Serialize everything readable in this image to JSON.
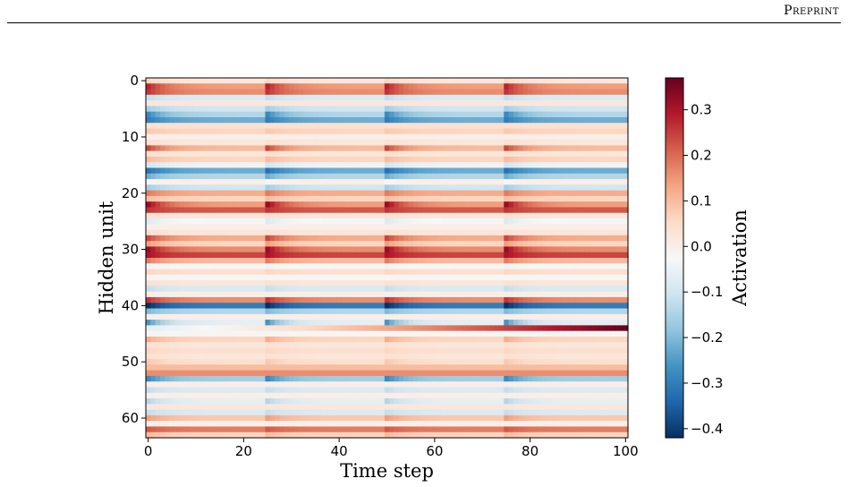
{
  "header": {
    "running_head": "Preprint"
  },
  "chart_data": {
    "type": "heatmap",
    "xlabel": "Time step",
    "ylabel": "Hidden unit",
    "colorbar_label": "Activation",
    "colormap": "RdBu_r",
    "x_range": [
      0,
      100
    ],
    "y_range": [
      0,
      63
    ],
    "y_inverted": true,
    "x_ticks": [
      0,
      20,
      40,
      60,
      80,
      100
    ],
    "y_ticks": [
      0,
      10,
      20,
      30,
      40,
      50,
      60
    ],
    "x_tick_labels": [
      "0",
      "20",
      "40",
      "60",
      "80",
      "100"
    ],
    "y_tick_labels": [
      "0",
      "10",
      "20",
      "30",
      "40",
      "50",
      "60"
    ],
    "colorbar_range": [
      -0.42,
      0.37
    ],
    "colorbar_ticks": [
      0.3,
      0.2,
      0.1,
      0.0,
      -0.1,
      -0.2,
      -0.3,
      -0.4
    ],
    "colorbar_tick_labels": [
      "0.3",
      "0.2",
      "0.1",
      "0.0",
      "−0.1",
      "−0.2",
      "−0.3",
      "−0.4"
    ],
    "input_onsets": [
      0,
      25,
      50,
      75
    ],
    "unit_steady_activation": [
      0.02,
      0.14,
      0.16,
      -0.08,
      0.02,
      -0.1,
      -0.14,
      -0.22,
      0.04,
      0.06,
      0.0,
      0.02,
      0.1,
      0.02,
      0.06,
      -0.04,
      -0.22,
      -0.14,
      0.0,
      -0.1,
      0.12,
      0.06,
      0.14,
      0.22,
      0.02,
      -0.02,
      0.0,
      0.02,
      0.12,
      0.06,
      0.16,
      0.24,
      0.1,
      -0.02,
      0.04,
      -0.02,
      0.02,
      -0.08,
      0.0,
      0.16,
      -0.3,
      -0.14,
      0.0,
      -0.06,
      0.1,
      -0.02,
      0.06,
      0.02,
      0.04,
      0.02,
      0.04,
      0.1,
      0.16,
      -0.16,
      0.0,
      -0.08,
      0.0,
      -0.06,
      0.02,
      -0.08,
      0.08,
      0.0,
      0.18,
      0.06
    ],
    "unit_transient_activation": [
      0.04,
      0.14,
      0.1,
      -0.04,
      0.0,
      -0.06,
      -0.14,
      -0.08,
      0.0,
      0.02,
      0.0,
      0.02,
      0.14,
      0.02,
      0.04,
      -0.06,
      -0.1,
      -0.08,
      -0.02,
      -0.06,
      0.06,
      0.04,
      0.18,
      0.04,
      0.02,
      -0.06,
      0.0,
      0.02,
      0.12,
      0.08,
      0.16,
      0.06,
      0.08,
      -0.02,
      0.02,
      0.0,
      0.02,
      -0.04,
      0.0,
      0.1,
      -0.12,
      -0.06,
      0.0,
      -0.2,
      0.0,
      0.0,
      0.06,
      0.02,
      0.02,
      0.02,
      0.04,
      0.0,
      0.0,
      -0.12,
      0.0,
      -0.04,
      0.0,
      -0.08,
      0.0,
      -0.04,
      0.06,
      0.0,
      0.04,
      0.04
    ],
    "ramp_unit": {
      "unit": 44,
      "start_value": -0.06,
      "end_value": 0.37
    }
  }
}
